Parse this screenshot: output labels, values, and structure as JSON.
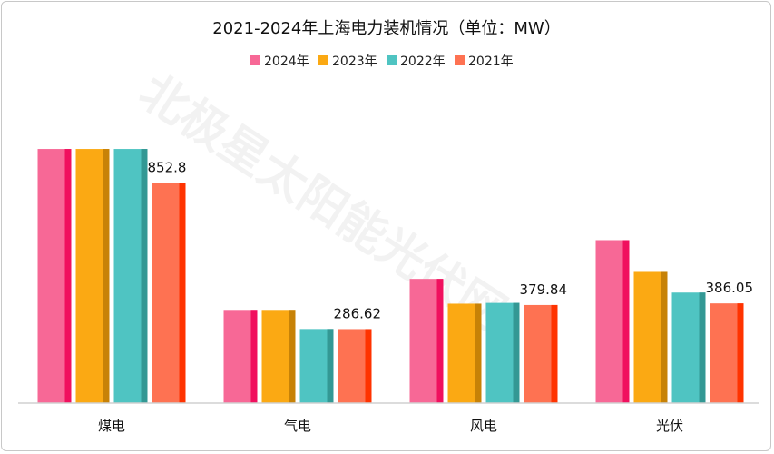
{
  "chart_data": {
    "type": "bar",
    "title": "2021-2024年上海电力装机情况（单位：MW）",
    "categories": [
      "煤电",
      "气电",
      "风电",
      "光伏"
    ],
    "series": [
      {
        "name": "2024年",
        "color": "#F76896",
        "values": [
          984,
          361,
          481,
          631
        ]
      },
      {
        "name": "2023年",
        "color": "#FBA913",
        "values": [
          984,
          361,
          385,
          508
        ]
      },
      {
        "name": "2022年",
        "color": "#4FC4C2",
        "values": [
          984,
          287,
          388,
          428
        ]
      },
      {
        "name": "2021年",
        "color": "#FE7252",
        "values": [
          852.8,
          286.62,
          379.84,
          386.05
        ]
      }
    ],
    "data_labels": {
      "series": "2021年",
      "labels": [
        "852.8",
        "286.62",
        "379.84",
        "386.05"
      ]
    },
    "ylim": [
      0,
      1000
    ],
    "grid": false,
    "legend": "top",
    "xlabel": "",
    "ylabel": ""
  },
  "watermark": "北极星太阳能光伏网"
}
